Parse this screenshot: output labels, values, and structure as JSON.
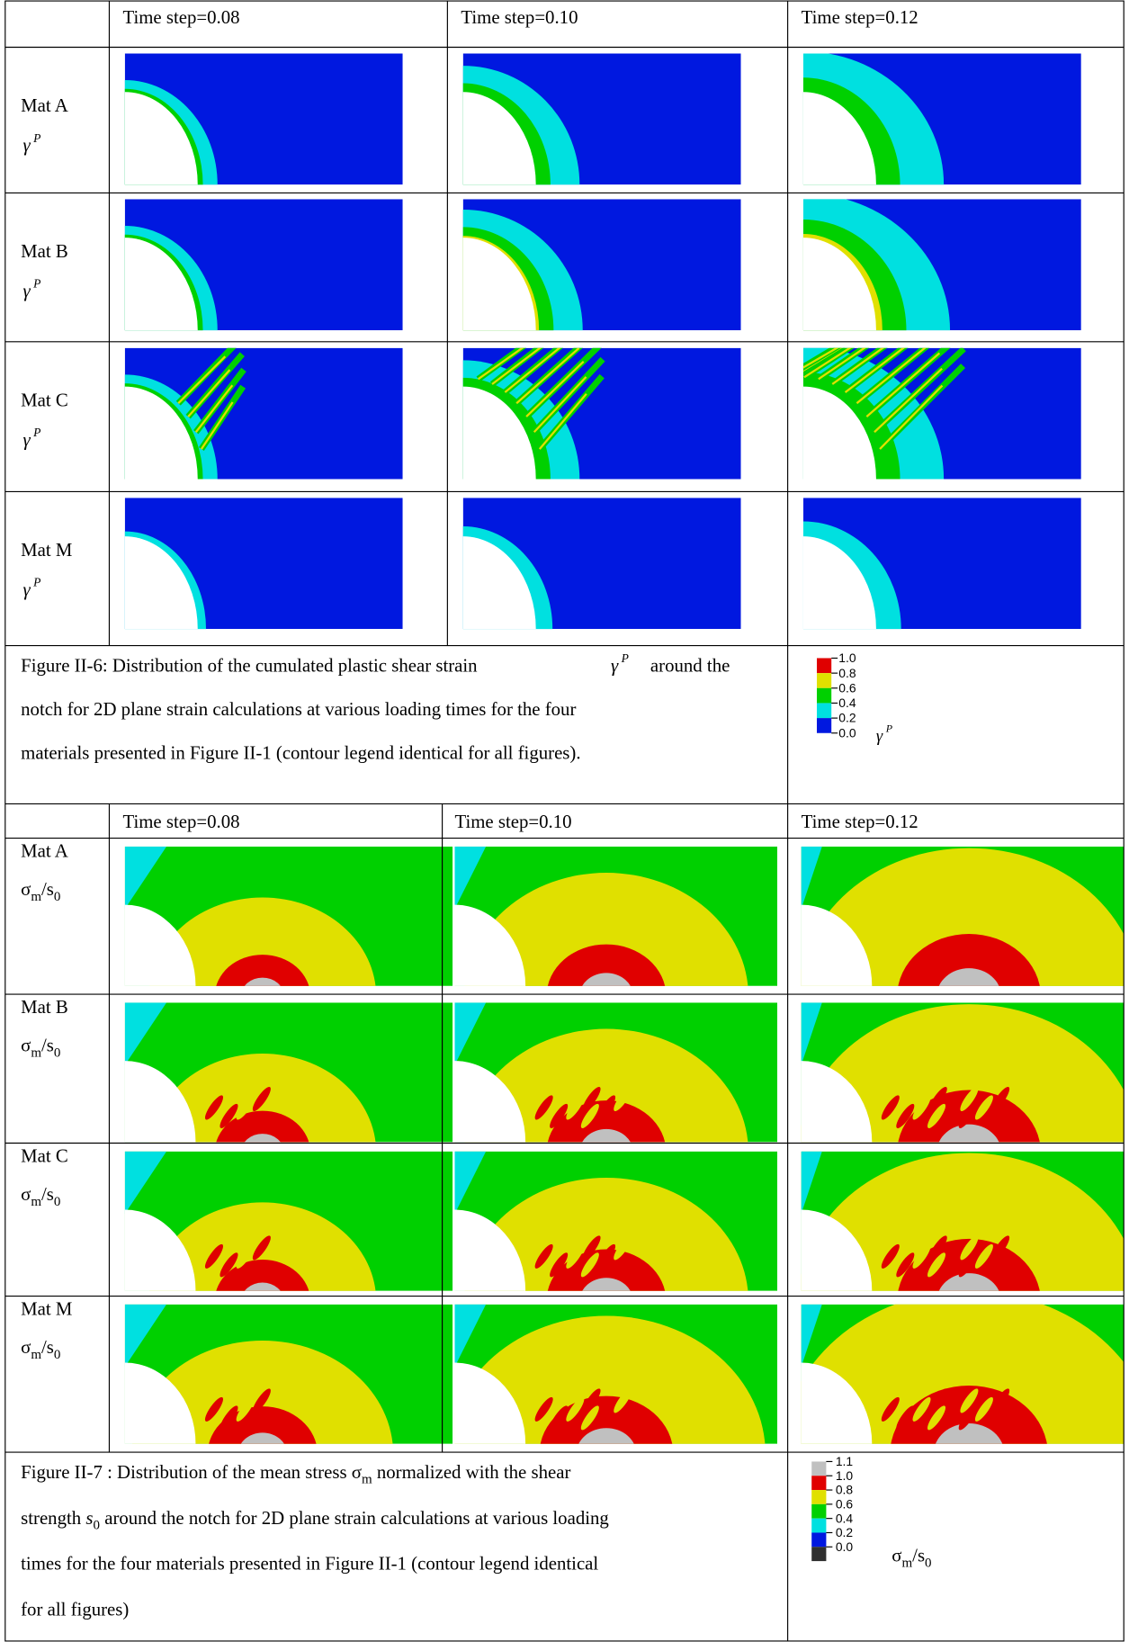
{
  "figure_6": {
    "columns": [
      "Time step=0.08",
      "Time step=0.10",
      "Time step=0.12"
    ],
    "rows": [
      {
        "material": "Mat A",
        "variable": {
          "symbol": "γ",
          "superscript": "P"
        }
      },
      {
        "material": "Mat B",
        "variable": {
          "symbol": "γ",
          "superscript": "P"
        }
      },
      {
        "material": "Mat C",
        "variable": {
          "symbol": "γ",
          "superscript": "P"
        }
      },
      {
        "material": "Mat M",
        "variable": {
          "symbol": "γ",
          "superscript": "P"
        }
      }
    ],
    "caption": {
      "first_line_start": "Figure II-6: Distribution of the cumulated plastic shear strain",
      "symbol": {
        "symbol": "γ",
        "superscript": "P"
      },
      "first_line_end": "around the",
      "lines": [
        "notch for 2D plane strain calculations at various loading times for the four",
        "materials presented in Figure II-1 (contour legend identical for all figures)."
      ]
    },
    "legend": {
      "ticks": [
        "1.0",
        "0.8",
        "0.6",
        "0.4",
        "0.2",
        "0.0"
      ],
      "colors": [
        "#e00000",
        "#e0e000",
        "#00d000",
        "#00e0e0",
        "#0018e0"
      ],
      "variable": {
        "symbol": "γ",
        "superscript": "P"
      }
    }
  },
  "figure_7": {
    "columns": [
      "Time step=0.08",
      "Time step=0.10",
      "Time step=0.12"
    ],
    "rows": [
      {
        "material": "Mat A",
        "variable": [
          {
            "text": "σ"
          },
          {
            "text": "m",
            "sub": true
          },
          {
            "text": "/s"
          },
          {
            "text": "0",
            "sub": true
          }
        ]
      },
      {
        "material": "Mat B",
        "variable": [
          {
            "text": "σ"
          },
          {
            "text": "m",
            "sub": true
          },
          {
            "text": "/s"
          },
          {
            "text": "0",
            "sub": true
          }
        ]
      },
      {
        "material": "Mat C",
        "variable": [
          {
            "text": "σ"
          },
          {
            "text": "m",
            "sub": true
          },
          {
            "text": "/s"
          },
          {
            "text": "0",
            "sub": true
          }
        ]
      },
      {
        "material": "Mat M",
        "variable": [
          {
            "text": "σ"
          },
          {
            "text": "m",
            "sub": true
          },
          {
            "text": "/s"
          },
          {
            "text": "0",
            "sub": true
          }
        ]
      }
    ],
    "caption": [
      [
        {
          "text": "Figure II-7 : Distribution of the mean stress "
        },
        {
          "text": "σ"
        },
        {
          "text": "m",
          "sub": true
        },
        {
          "text": " normalized with the shear"
        }
      ],
      [
        {
          "text": "strength "
        },
        {
          "text": "s",
          "italic": true
        },
        {
          "text": "0",
          "sub": true
        },
        {
          "text": " around the notch for 2D plane strain calculations at various loading"
        }
      ],
      [
        {
          "text": "times for the four materials presented in Figure II-1 (contour legend identical"
        }
      ],
      [
        {
          "text": "for all figures)"
        }
      ]
    ],
    "legend": {
      "ticks": [
        "1.1",
        "1.0",
        "0.8",
        "0.6",
        "0.4",
        "0.2",
        "0.0"
      ],
      "colors": [
        "#c0c0c0",
        "#e00000",
        "#e0e000",
        "#00d000",
        "#00e0e0",
        "#0018e0",
        "#303030"
      ],
      "variable": [
        {
          "text": "σ"
        },
        {
          "text": "m",
          "sub": true
        },
        {
          "text": "/s"
        },
        {
          "text": "0",
          "sub": true
        }
      ]
    }
  }
}
